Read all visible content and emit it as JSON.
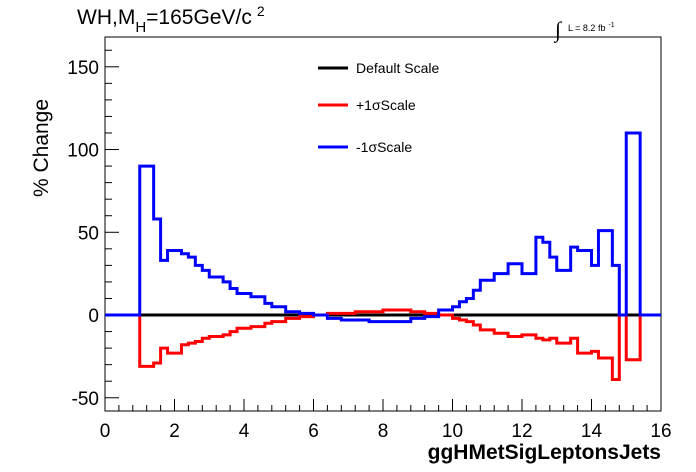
{
  "chart_data": {
    "type": "line",
    "title_main": "WH,M",
    "title_sub": "H",
    "title_rest": "=165GeV/c",
    "title_sup": "2",
    "lumi": {
      "integral": "∫",
      "text": "L = 8.2 fb",
      "sup": "-1"
    },
    "xlabel": "ggHMetSigLeptonsJets",
    "ylabel": "% Change",
    "xlim": [
      0,
      16
    ],
    "ylim": [
      -58,
      168
    ],
    "xticks": [
      0,
      2,
      4,
      6,
      8,
      10,
      12,
      14,
      16
    ],
    "yticks": [
      -50,
      0,
      50,
      100,
      150
    ],
    "bin_edges": [
      0,
      0.4,
      0.8,
      1.0,
      1.4,
      1.6,
      1.8,
      2.2,
      2.4,
      2.6,
      2.8,
      3.0,
      3.4,
      3.6,
      3.8,
      4.2,
      4.6,
      4.8,
      5.2,
      5.6,
      6.0,
      6.4,
      6.8,
      7.2,
      7.6,
      8.0,
      8.4,
      8.8,
      9.2,
      9.6,
      10.0,
      10.2,
      10.4,
      10.6,
      10.8,
      11.2,
      11.6,
      12.0,
      12.4,
      12.6,
      12.8,
      13.0,
      13.4,
      13.6,
      14.0,
      14.2,
      14.6,
      14.8,
      15.0,
      15.4,
      15.8,
      16.0
    ],
    "series": [
      {
        "name": "Default Scale",
        "color": "#000000",
        "values": [
          0,
          0,
          0,
          0,
          0,
          0,
          0,
          0,
          0,
          0,
          0,
          0,
          0,
          0,
          0,
          0,
          0,
          0,
          0,
          0,
          0,
          0,
          0,
          0,
          0,
          0,
          0,
          0,
          0,
          0,
          0,
          0,
          0,
          0,
          0,
          0,
          0,
          0,
          0,
          0,
          0,
          0,
          0,
          0,
          0,
          0,
          0,
          0,
          0,
          0,
          0
        ]
      },
      {
        "name": "+1σScale",
        "color": "#ff0000",
        "values": [
          0,
          0,
          0,
          -31,
          -29,
          -20,
          -23,
          -18,
          -17,
          -16,
          -14,
          -13,
          -12,
          -10,
          -8,
          -7,
          -5,
          -4,
          -2,
          -1,
          0,
          1,
          1,
          2,
          2,
          3,
          3,
          2,
          1,
          0,
          -2,
          -3,
          -4,
          -6,
          -9,
          -11,
          -13,
          -12,
          -14,
          -15,
          -14,
          -17,
          -14,
          -23,
          -22,
          -26,
          -39,
          0,
          -27,
          0,
          0
        ]
      },
      {
        "name": "-1σScale",
        "color": "#0000ff",
        "values": [
          0,
          0,
          0,
          90,
          58,
          33,
          39,
          37,
          35,
          30,
          27,
          23,
          20,
          16,
          13,
          11,
          7,
          5,
          2,
          1,
          0,
          -2,
          -3,
          -3,
          -4,
          -4,
          -4,
          -2,
          -1,
          3,
          5,
          8,
          10,
          15,
          21,
          25,
          31,
          25,
          47,
          44,
          35,
          27,
          41,
          39,
          30,
          51,
          30,
          0,
          110,
          0,
          0
        ]
      }
    ]
  }
}
